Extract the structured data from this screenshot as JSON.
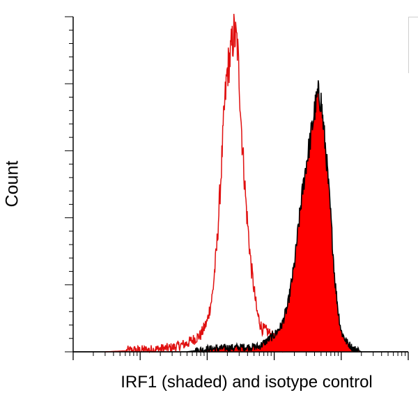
{
  "chart_data": {
    "type": "area",
    "title": "",
    "xlabel": "IRF1 (shaded) and isotype control",
    "ylabel": "Count",
    "x_scale": "log",
    "xlim": [
      0.1,
      10000
    ],
    "ylim": [
      0,
      100
    ],
    "tick_labels_shown": false,
    "grid": false,
    "colors": {
      "isotype": "#e01010",
      "irf1_fill": "#ff0000",
      "irf1_outline": "#000000",
      "axis": "#000000"
    },
    "series": [
      {
        "style": "outline",
        "x": [
          0.3,
          0.8,
          1.5,
          3,
          5,
          8,
          10,
          12,
          14,
          16,
          18,
          20,
          22,
          25,
          28,
          30,
          33,
          38,
          45,
          55,
          65,
          80,
          100,
          120,
          150
        ],
        "values": [
          0,
          0.4,
          0.6,
          1.2,
          2.5,
          5,
          9,
          17,
          32,
          52,
          72,
          84,
          88,
          95,
          92,
          82,
          64,
          44,
          26,
          12,
          7,
          6,
          4,
          2,
          0
        ]
      },
      {
        "style": "filled",
        "x": [
          5,
          10,
          20,
          40,
          60,
          80,
          100,
          130,
          160,
          200,
          250,
          300,
          350,
          400,
          450,
          500,
          600,
          700,
          800,
          900,
          1000,
          1200,
          1500,
          2000
        ],
        "values": [
          0,
          0.8,
          1.2,
          1.4,
          1.6,
          3.5,
          5,
          8,
          14,
          26,
          44,
          56,
          64,
          72,
          77,
          75,
          58,
          40,
          22,
          12,
          6,
          3,
          1,
          0
        ]
      }
    ]
  }
}
